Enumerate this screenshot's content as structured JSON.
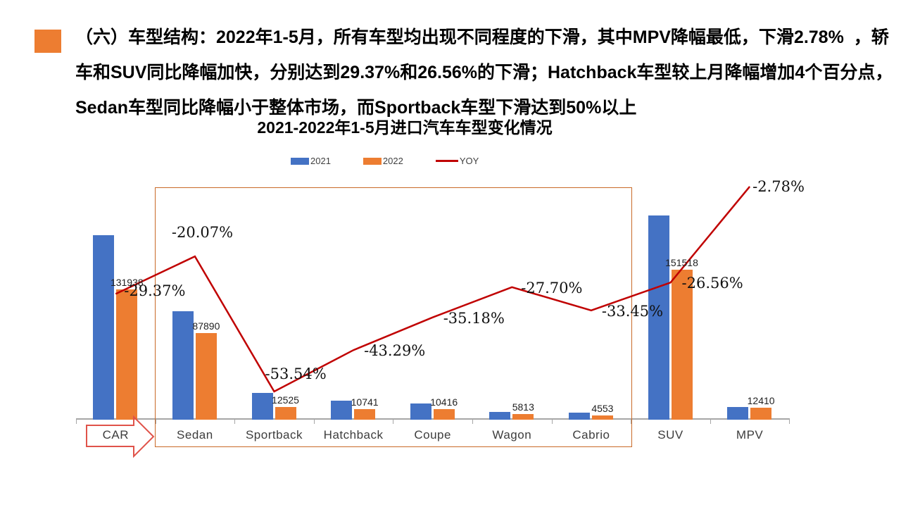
{
  "header": {
    "bullet_color": "#ED7D31",
    "lines": [
      "（六）车型结构：2022年1-5月，所有车型均出现不同程度的下滑，其中MPV降幅最低，下滑2.78%  ，轿",
      "车和SUV同比降幅加快，分别达到29.37%和26.56%的下滑；Hatchback车型较上月降幅增加4个百分点，",
      "Sedan车型同比降幅小于整体市场，而Sportback车型下滑达到50%以上"
    ]
  },
  "chart": {
    "title": "2021-2022年1-5月进口汽车车型变化情况",
    "legend": [
      {
        "label": "2021",
        "color": "#4472C4",
        "marker": "rect"
      },
      {
        "label": "2022",
        "color": "#ED7D31",
        "marker": "rect"
      },
      {
        "label": "YOY",
        "color": "#C00000",
        "marker": "line"
      }
    ]
  },
  "chart_data": {
    "type": "bar",
    "subtype": "grouped-bars-with-secondary-axis-line",
    "title": "2021-2022年1-5月进口汽车车型变化情况",
    "categories": [
      "CAR",
      "Sedan",
      "Sportback",
      "Hatchback",
      "Coupe",
      "Wagon",
      "Cabrio",
      "SUV",
      "MPV"
    ],
    "series": [
      {
        "name": "2021",
        "type": "bar",
        "color": "#4472C4",
        "values": [
          186800,
          110000,
          26950,
          18950,
          16070,
          8040,
          6840,
          206300,
          12770
        ],
        "note": "bars unlabeled in image; values estimated from 2022 labels and YOY percentages"
      },
      {
        "name": "2022",
        "type": "bar",
        "color": "#ED7D31",
        "values": [
          131938,
          87890,
          12525,
          10741,
          10416,
          5813,
          4553,
          151518,
          12410
        ],
        "value_labels": [
          "131938",
          "87890",
          "12525",
          "10741",
          "10416",
          "5813",
          "4553",
          "151518",
          "12410"
        ]
      },
      {
        "name": "YOY",
        "type": "line",
        "color": "#C00000",
        "axis": "secondary",
        "values_pct": [
          -29.37,
          -20.07,
          -53.54,
          -43.29,
          -35.18,
          -27.7,
          -33.45,
          -26.56,
          -2.78
        ],
        "point_labels": [
          "-29.37%",
          "-20.07%",
          "-53.54%",
          "-43.29%",
          "-35.18%",
          "-27.70%",
          "-33.45%",
          "-26.56%",
          "-2.78%"
        ]
      }
    ],
    "primary_axis": {
      "visible": false,
      "min": 0,
      "max": 250000
    },
    "secondary_axis": {
      "visible": false,
      "min": -60,
      "max": 0,
      "unit": "%"
    },
    "x_axis": {
      "visible": true,
      "tick_marks": true,
      "line_color": "#a6a6a6"
    },
    "legend_position": "top",
    "grid": false,
    "annotations": {
      "highlight_box_categories": [
        "Sedan",
        "Cabrio"
      ],
      "highlight_box_color": "#C96A28",
      "arrow_label_category": "CAR",
      "arrow_color": "#E0534A"
    }
  }
}
